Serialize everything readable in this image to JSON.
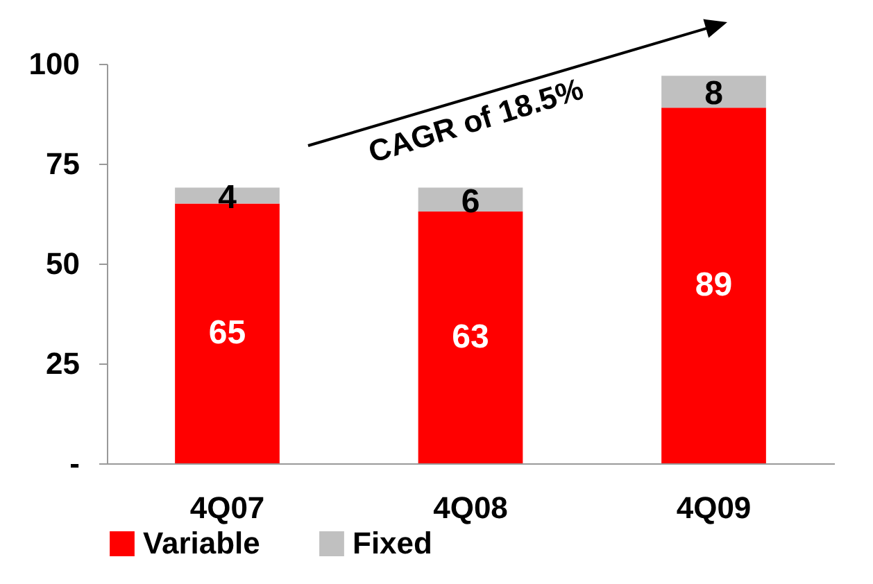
{
  "chart_data": {
    "type": "bar",
    "stacked": true,
    "categories": [
      "4Q07",
      "4Q08",
      "4Q09"
    ],
    "series": [
      {
        "name": "Variable",
        "color": "#ff0000",
        "values": [
          65,
          63,
          89
        ]
      },
      {
        "name": "Fixed",
        "color": "#c0c0c0",
        "values": [
          4,
          6,
          8
        ]
      }
    ],
    "ylim": [
      0,
      100
    ],
    "yticks": [
      {
        "value": 0,
        "label": "-"
      },
      25,
      50,
      75,
      100
    ],
    "data_labels": true,
    "legend": "bottom",
    "grid": false,
    "annotations": [
      "CAGR of 18.5%"
    ]
  }
}
